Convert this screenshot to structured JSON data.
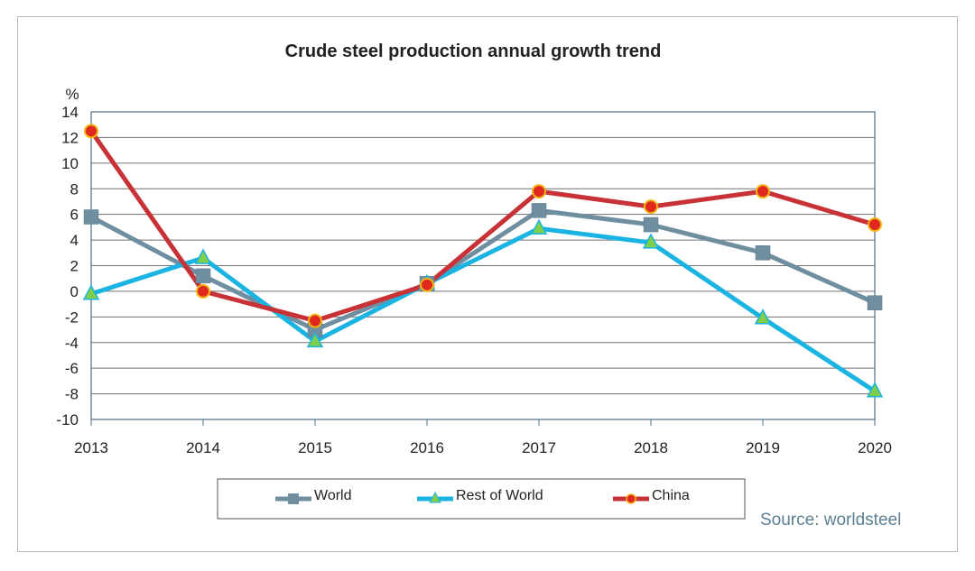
{
  "chart_data": {
    "type": "line",
    "title": "Crude steel production annual growth trend",
    "ylabel": "%",
    "xlabel": "",
    "categories": [
      "2013",
      "2014",
      "2015",
      "2016",
      "2017",
      "2018",
      "2019",
      "2020"
    ],
    "ylim": [
      -10,
      14
    ],
    "yticks": [
      14,
      12,
      10,
      8,
      6,
      4,
      2,
      0,
      -2,
      -4,
      -6,
      -8,
      -10
    ],
    "grid": true,
    "legend_position": "bottom",
    "series": [
      {
        "name": "World",
        "color": "#6f8ea0",
        "marker": "square",
        "values": [
          5.8,
          1.2,
          -3.0,
          0.6,
          6.3,
          5.2,
          3.0,
          -0.9
        ]
      },
      {
        "name": "Rest of World",
        "color": "#1bb4e2",
        "marker": "triangle",
        "values": [
          -0.2,
          2.6,
          -3.9,
          0.6,
          4.9,
          3.8,
          -2.1,
          -7.8
        ]
      },
      {
        "name": "China",
        "color": "#c83236",
        "marker": "circle",
        "values": [
          12.5,
          0.0,
          -2.3,
          0.5,
          7.8,
          6.6,
          7.8,
          5.2
        ]
      }
    ],
    "source": "Source: worldsteel"
  }
}
